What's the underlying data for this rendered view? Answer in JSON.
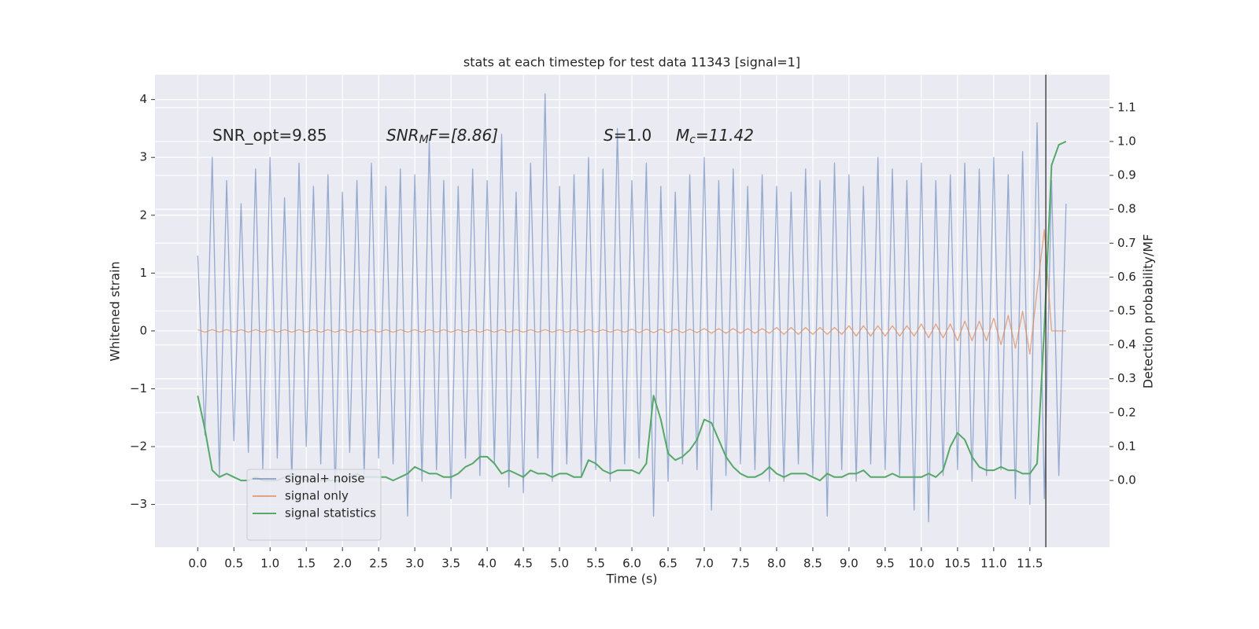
{
  "chart_data": {
    "type": "line",
    "title": "stats at each timestep for test data 11343 [signal=1]",
    "xlabel": "Time (s)",
    "ylabel": "Whitened strain",
    "y2label": "Detection probability/MF",
    "annotations": [
      {
        "text": "SNR_opt=9.85"
      },
      {
        "base": "SNR",
        "sub": "M",
        "rest": "F=[8.86]"
      },
      {
        "base": "S",
        "rest": "=1.0"
      },
      {
        "base": "M",
        "sub": "c",
        "rest": "=11.42"
      }
    ],
    "vline": 11.72,
    "grid": true,
    "legend": "lower left",
    "xlim": [
      -0.59,
      12.6
    ],
    "ylim": [
      -3.74,
      4.43
    ],
    "y2lim": [
      -0.197,
      1.197
    ],
    "xticks": [
      {
        "value": 0,
        "label": "0.0"
      },
      0.5,
      {
        "value": 1,
        "label": "1.0"
      },
      1.5,
      {
        "value": 2,
        "label": "2.0"
      },
      2.5,
      {
        "value": 3,
        "label": "3.0"
      },
      3.5,
      {
        "value": 4,
        "label": "4.0"
      },
      4.5,
      {
        "value": 5,
        "label": "5.0"
      },
      5.5,
      {
        "value": 6,
        "label": "6.0"
      },
      6.5,
      {
        "value": 7,
        "label": "7.0"
      },
      7.5,
      {
        "value": 8,
        "label": "8.0"
      },
      8.5,
      {
        "value": 9,
        "label": "9.0"
      },
      9.5,
      {
        "value": 10,
        "label": "10.0"
      },
      10.5,
      {
        "value": 11,
        "label": "11.0"
      },
      11.5
    ],
    "yticks": [
      {
        "value": -3,
        "label": "−3"
      },
      {
        "value": -2,
        "label": "−2"
      },
      {
        "value": -1,
        "label": "−1"
      },
      0,
      1,
      2,
      3,
      4
    ],
    "y2ticks": [
      {
        "value": 0,
        "label": "0.0"
      },
      0.1,
      0.2,
      0.3,
      0.4,
      0.5,
      0.6,
      0.7,
      0.8,
      0.9,
      {
        "value": 1,
        "label": "1.0"
      },
      1.1
    ],
    "x": [
      0,
      0.1,
      0.2,
      0.3,
      0.4,
      0.5,
      0.6,
      0.7,
      0.8,
      0.9,
      1,
      1.1,
      1.2,
      1.3,
      1.4,
      1.5,
      1.6,
      1.7,
      1.8,
      1.9,
      2,
      2.1,
      2.2,
      2.3,
      2.4,
      2.5,
      2.6,
      2.7,
      2.8,
      2.9,
      3,
      3.1,
      3.2,
      3.3,
      3.4,
      3.5,
      3.6,
      3.7,
      3.8,
      3.9,
      4,
      4.1,
      4.2,
      4.3,
      4.4,
      4.5,
      4.6,
      4.7,
      4.8,
      4.9,
      5,
      5.1,
      5.2,
      5.3,
      5.4,
      5.5,
      5.6,
      5.7,
      5.8,
      5.9,
      6,
      6.1,
      6.2,
      6.3,
      6.4,
      6.5,
      6.6,
      6.7,
      6.8,
      6.9,
      7,
      7.1,
      7.2,
      7.3,
      7.4,
      7.5,
      7.6,
      7.7,
      7.8,
      7.9,
      8,
      8.1,
      8.2,
      8.3,
      8.4,
      8.5,
      8.6,
      8.7,
      8.8,
      8.9,
      9,
      9.1,
      9.2,
      9.3,
      9.4,
      9.5,
      9.6,
      9.7,
      9.8,
      9.9,
      10,
      10.1,
      10.2,
      10.3,
      10.4,
      10.5,
      10.6,
      10.7,
      10.8,
      10.9,
      11,
      11.1,
      11.2,
      11.3,
      11.4,
      11.5,
      11.6,
      11.7,
      11.8,
      11.9,
      12
    ],
    "series": [
      {
        "name": "signal+ noise",
        "color": "#4c72b0",
        "opacity": 0.55,
        "values": [
          1.3,
          -1.8,
          3.0,
          -2.5,
          2.6,
          -1.9,
          2.2,
          -2.1,
          2.8,
          -2.4,
          3.0,
          -2.2,
          2.3,
          -2.6,
          2.9,
          -2.0,
          2.5,
          -2.3,
          2.7,
          -2.8,
          2.4,
          -2.1,
          2.6,
          -2.5,
          2.9,
          -2.2,
          2.5,
          -2.3,
          2.8,
          -3.2,
          2.7,
          -2.6,
          3.3,
          -2.4,
          2.6,
          -2.9,
          2.5,
          -2.2,
          2.8,
          -2.5,
          2.6,
          -2.3,
          3.4,
          -2.7,
          2.4,
          -2.8,
          2.9,
          -2.2,
          4.1,
          -2.6,
          2.5,
          -2.3,
          2.7,
          -2.5,
          3.0,
          -2.4,
          2.8,
          -2.6,
          3.5,
          -2.3,
          2.6,
          -2.2,
          2.9,
          -3.2,
          2.5,
          -2.6,
          2.4,
          -2.3,
          2.7,
          -2.4,
          3.0,
          -3.1,
          2.6,
          -2.5,
          2.8,
          -2.3,
          2.5,
          -2.4,
          2.7,
          -2.6,
          2.5,
          -2.6,
          2.4,
          -2.3,
          2.8,
          -2.5,
          2.6,
          -3.2,
          2.9,
          -2.4,
          2.7,
          -2.6,
          2.5,
          -2.3,
          3.0,
          -2.4,
          2.8,
          -2.5,
          2.6,
          -3.1,
          2.9,
          -3.3,
          2.6,
          -2.5,
          2.7,
          -2.4,
          2.9,
          -2.6,
          2.8,
          -2.5,
          3.0,
          -2.4,
          2.7,
          -2.9,
          3.1,
          -3.0,
          3.6,
          -2.9,
          2.6,
          -2.5,
          2.2
        ]
      },
      {
        "name": "signal only",
        "color": "#dd8452",
        "opacity": 0.7,
        "values": [
          0.02,
          -0.02,
          0.02,
          -0.02,
          0.02,
          -0.02,
          0.02,
          -0.02,
          0.02,
          -0.02,
          0.02,
          -0.02,
          0.02,
          -0.02,
          0.02,
          -0.02,
          0.02,
          -0.02,
          0.02,
          -0.02,
          0.02,
          -0.02,
          0.02,
          -0.02,
          0.02,
          -0.02,
          0.02,
          -0.02,
          0.02,
          -0.02,
          0.02,
          -0.02,
          0.02,
          -0.02,
          0.02,
          -0.02,
          0.02,
          -0.02,
          0.02,
          -0.02,
          0.02,
          -0.02,
          0.02,
          -0.02,
          0.02,
          -0.02,
          0.02,
          -0.02,
          0.02,
          -0.02,
          0.02,
          -0.02,
          0.02,
          -0.02,
          0.02,
          -0.02,
          0.02,
          -0.02,
          0.02,
          -0.02,
          0.03,
          -0.03,
          0.03,
          -0.03,
          0.03,
          -0.03,
          0.03,
          -0.03,
          0.03,
          -0.03,
          0.04,
          -0.04,
          0.04,
          -0.04,
          0.04,
          -0.04,
          0.04,
          -0.04,
          0.04,
          -0.04,
          0.06,
          -0.06,
          0.06,
          -0.06,
          0.06,
          -0.06,
          0.06,
          -0.06,
          0.06,
          -0.06,
          0.09,
          -0.09,
          0.09,
          -0.09,
          0.09,
          -0.09,
          0.09,
          -0.09,
          0.09,
          -0.09,
          0.12,
          -0.12,
          0.12,
          -0.12,
          0.12,
          -0.17,
          0.17,
          -0.17,
          0.17,
          -0.17,
          0.22,
          -0.24,
          0.27,
          -0.3,
          0.34,
          -0.4,
          0.7,
          1.75,
          0,
          0,
          0
        ]
      },
      {
        "name": "signal statistics",
        "color": "#55a868",
        "axis": "y2",
        "values": [
          0.25,
          0.15,
          0.03,
          0.01,
          0.02,
          0.01,
          0,
          0,
          0.01,
          0,
          0,
          0,
          0.01,
          0.02,
          0.01,
          0,
          0.01,
          0,
          0,
          0,
          0,
          0.01,
          0.02,
          0.01,
          0.01,
          0.01,
          0.01,
          0,
          0.01,
          0.02,
          0.04,
          0.03,
          0.02,
          0.02,
          0.01,
          0.01,
          0.02,
          0.04,
          0.05,
          0.07,
          0.07,
          0.05,
          0.02,
          0.03,
          0.02,
          0.01,
          0.03,
          0.02,
          0.02,
          0.01,
          0.02,
          0.02,
          0.01,
          0.01,
          0.06,
          0.05,
          0.03,
          0.02,
          0.03,
          0.03,
          0.03,
          0.02,
          0.05,
          0.25,
          0.18,
          0.08,
          0.06,
          0.07,
          0.09,
          0.12,
          0.18,
          0.17,
          0.12,
          0.07,
          0.04,
          0.02,
          0.01,
          0.01,
          0.02,
          0.04,
          0.02,
          0.01,
          0.02,
          0.02,
          0.02,
          0.01,
          0,
          0.02,
          0.01,
          0.01,
          0.02,
          0.02,
          0.03,
          0.01,
          0.01,
          0.01,
          0.02,
          0.01,
          0.01,
          0.01,
          0.01,
          0.02,
          0.01,
          0.03,
          0.1,
          0.14,
          0.12,
          0.07,
          0.04,
          0.03,
          0.03,
          0.04,
          0.03,
          0.03,
          0.02,
          0.02,
          0.05,
          0.45,
          0.93,
          0.99,
          1.0
        ]
      }
    ]
  }
}
